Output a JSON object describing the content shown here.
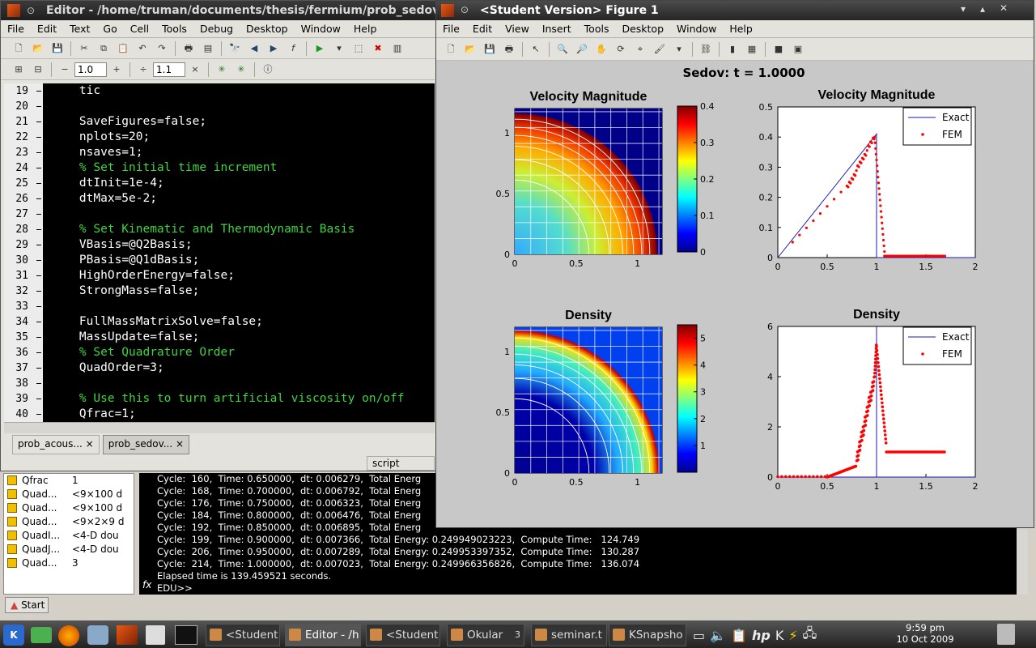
{
  "editor": {
    "title": "Editor - /home/truman/documents/thesis/fermium/prob_sedov.m",
    "menu": [
      "File",
      "Edit",
      "Text",
      "Go",
      "Cell",
      "Tools",
      "Debug",
      "Desktop",
      "Window",
      "Help"
    ],
    "cell_a": "1.0",
    "cell_b": "1.1",
    "lines": [
      {
        "n": "19",
        "t": "    tic",
        "c": false
      },
      {
        "n": "20",
        "t": "",
        "c": false
      },
      {
        "n": "21",
        "t": "    SaveFigures=false;",
        "c": false
      },
      {
        "n": "22",
        "t": "    nplots=20;",
        "c": false
      },
      {
        "n": "23",
        "t": "    nsaves=1;",
        "c": false
      },
      {
        "n": "24",
        "t": "    % Set initial time increment",
        "c": true
      },
      {
        "n": "25",
        "t": "    dtInit=1e-4;",
        "c": false
      },
      {
        "n": "26",
        "t": "    dtMax=5e-2;",
        "c": false
      },
      {
        "n": "27",
        "t": "",
        "c": false
      },
      {
        "n": "28",
        "t": "    % Set Kinematic and Thermodynamic Basis",
        "c": true
      },
      {
        "n": "29",
        "t": "    VBasis=@Q2Basis;",
        "c": false
      },
      {
        "n": "30",
        "t": "    PBasis=@Q1dBasis;",
        "c": false
      },
      {
        "n": "31",
        "t": "    HighOrderEnergy=false;",
        "c": false
      },
      {
        "n": "32",
        "t": "    StrongMass=false;",
        "c": false
      },
      {
        "n": "33",
        "t": "",
        "c": false
      },
      {
        "n": "34",
        "t": "    FullMassMatrixSolve=false;",
        "c": false
      },
      {
        "n": "35",
        "t": "    MassUpdate=false;",
        "c": false
      },
      {
        "n": "36",
        "t": "    % Set Quadrature Order",
        "c": true
      },
      {
        "n": "37",
        "t": "    QuadOrder=3;",
        "c": false
      },
      {
        "n": "38",
        "t": "",
        "c": false
      },
      {
        "n": "39",
        "t": "    % Use this to turn artificial viscosity on/off",
        "c": true
      },
      {
        "n": "40",
        "t": "    Qfrac=1;",
        "c": false
      }
    ],
    "tabs": [
      "prob_acous...",
      "prob_sedov..."
    ],
    "status": "script"
  },
  "workspace": {
    "rows": [
      {
        "n": "Qfrac",
        "v": "1"
      },
      {
        "n": "Quad...",
        "v": "<9×100 d"
      },
      {
        "n": "Quad...",
        "v": "<9×100 d"
      },
      {
        "n": "Quad...",
        "v": "<9×2×9 d"
      },
      {
        "n": "QuadI...",
        "v": "<4-D dou"
      },
      {
        "n": "QuadJ...",
        "v": "<4-D dou"
      },
      {
        "n": "Quad...",
        "v": "3"
      }
    ]
  },
  "console": {
    "lines": [
      "Cycle:  160,  Time: 0.650000,  dt: 0.006279,  Total Energ",
      "Cycle:  168,  Time: 0.700000,  dt: 0.006792,  Total Energ",
      "Cycle:  176,  Time: 0.750000,  dt: 0.006323,  Total Energ",
      "Cycle:  184,  Time: 0.800000,  dt: 0.006476,  Total Energ",
      "Cycle:  192,  Time: 0.850000,  dt: 0.006895,  Total Energ",
      "Cycle:  199,  Time: 0.900000,  dt: 0.007366,  Total Energy: 0.249949023223,  Compute Time:   124.749",
      "Cycle:  206,  Time: 0.950000,  dt: 0.007289,  Total Energy: 0.249953397352,  Compute Time:   130.287",
      "Cycle:  214,  Time: 1.000000,  dt: 0.007023,  Total Energy: 0.249966356826,  Compute Time:   136.074",
      "Elapsed time is 139.459521 seconds."
    ],
    "prompt": "EDU>>",
    "fx": "fx"
  },
  "start": "Start",
  "figure": {
    "title": "<Student Version> Figure 1",
    "menu": [
      "File",
      "Edit",
      "View",
      "Insert",
      "Tools",
      "Desktop",
      "Window",
      "Help"
    ],
    "suptitle": "Sedov: t = 1.0000",
    "p1": {
      "title": "Velocity Magnitude",
      "xt": [
        "0",
        "0.5",
        "1"
      ],
      "yt": [
        "0",
        "0.5",
        "1"
      ],
      "cb": [
        "0",
        "0.1",
        "0.2",
        "0.3",
        "0.4"
      ]
    },
    "p2": {
      "title": "Velocity Magnitude",
      "xt": [
        "0",
        "0.5",
        "1",
        "1.5",
        "2"
      ],
      "yt": [
        "0",
        "0.1",
        "0.2",
        "0.3",
        "0.4",
        "0.5"
      ],
      "legend": [
        "Exact",
        "FEM"
      ]
    },
    "p3": {
      "title": "Density",
      "xt": [
        "0",
        "0.5",
        "1"
      ],
      "yt": [
        "0",
        "0.5",
        "1"
      ],
      "cb": [
        "1",
        "2",
        "3",
        "4",
        "5"
      ]
    },
    "p4": {
      "title": "Density",
      "xt": [
        "0",
        "0.5",
        "1",
        "1.5",
        "2"
      ],
      "yt": [
        "0",
        "2",
        "4",
        "6"
      ],
      "legend": [
        "Exact",
        "FEM"
      ]
    }
  },
  "taskbar": {
    "items": [
      "<Student",
      "Editor - /h",
      "<Student",
      "Okular",
      "seminar.t",
      "KSnapsho"
    ],
    "okular_count": "3",
    "time": "9:59 pm",
    "date": "10 Oct 2009"
  }
}
